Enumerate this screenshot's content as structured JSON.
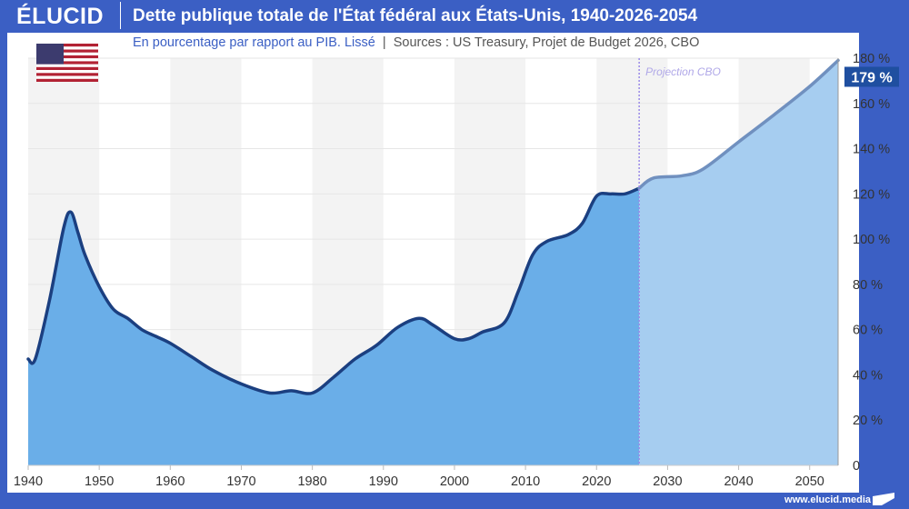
{
  "header": {
    "logo": "ÉLUCID",
    "title": "Dette publique totale de l'État fédéral aux États-Unis, 1940-2026-2054"
  },
  "subtitle": {
    "main": "En pourcentage par rapport au PIB. Lissé",
    "separator": "|",
    "sources": "Sources : US Treasury, Projet de Budget 2026, CBO"
  },
  "footer": {
    "url": "www.elucid.media"
  },
  "colors": {
    "brand": "#3b5fc4",
    "historical_fill": "#6aaee8",
    "historical_line": "#1b3f80",
    "projection_fill": "#a6cdf0",
    "projection_line": "#7090bf",
    "projection_marker": "#9a8ae8",
    "label_bg": "#1f4fa0"
  },
  "chart_data": {
    "type": "area",
    "title": "Dette publique totale de l'État fédéral aux États-Unis, 1940-2026-2054",
    "xlim": [
      1940,
      2054
    ],
    "ylim": [
      0,
      180
    ],
    "x_ticks": [
      "1940",
      "1950",
      "1960",
      "1970",
      "1980",
      "1990",
      "2000",
      "2010",
      "2020",
      "2030",
      "2040",
      "2050"
    ],
    "y_ticks": [
      "0",
      "20 %",
      "40 %",
      "60 %",
      "80 %",
      "100 %",
      "120 %",
      "140 %",
      "160 %",
      "180 %"
    ],
    "grid": true,
    "annotation": "Projection CBO",
    "projection_start": 2026,
    "last_value_label": "179 %",
    "series": [
      {
        "segment": "historical",
        "x": [
          1940,
          1941,
          1943,
          1945,
          1946,
          1947,
          1948,
          1950,
          1952,
          1954,
          1956,
          1958,
          1960,
          1963,
          1966,
          1970,
          1974,
          1977,
          1980,
          1983,
          1986,
          1989,
          1992,
          1995,
          1997,
          2000,
          2002,
          2004,
          2007,
          2009,
          2011,
          2013,
          2016,
          2018,
          2020,
          2022,
          2024,
          2026
        ],
        "y": [
          47,
          47,
          73,
          105,
          112,
          103,
          93,
          79,
          69,
          65,
          60,
          57,
          54,
          48,
          42,
          36,
          32,
          33,
          32,
          39,
          47,
          53,
          61,
          65,
          62,
          56,
          56,
          59,
          63,
          77,
          93,
          99,
          102,
          107,
          119,
          120,
          120,
          122.5
        ]
      },
      {
        "segment": "projection",
        "x": [
          2026,
          2028,
          2032,
          2035,
          2040,
          2045,
          2050,
          2054
        ],
        "y": [
          122.5,
          127,
          128,
          131,
          143,
          155,
          167.5,
          179
        ]
      }
    ]
  }
}
